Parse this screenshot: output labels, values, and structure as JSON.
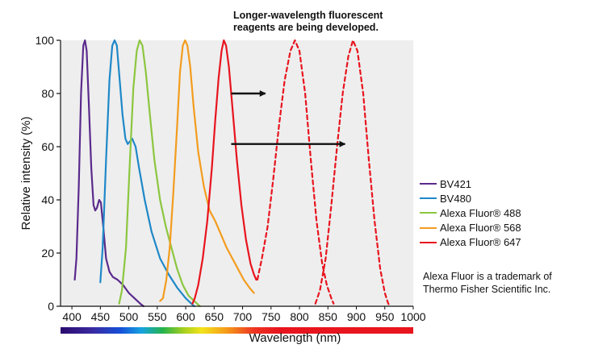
{
  "chart_data": {
    "type": "line",
    "title": "",
    "xlabel": "Wavelength (nm)",
    "ylabel": "Relative intensity (%)",
    "xlim": [
      380,
      1000
    ],
    "ylim": [
      0,
      100
    ],
    "x_ticks": [
      "400",
      "450",
      "500",
      "550",
      "600",
      "650",
      "700",
      "750",
      "800",
      "850",
      "900",
      "950",
      "1000"
    ],
    "y_ticks": [
      "0",
      "20",
      "40",
      "60",
      "80",
      "100"
    ],
    "grid": false,
    "plot_background": "#eeeeee",
    "legend_position": "right",
    "series": [
      {
        "name": "BV421",
        "color": "#5a2a8c",
        "dashed": false,
        "points": [
          [
            405,
            10
          ],
          [
            408,
            18
          ],
          [
            412,
            45
          ],
          [
            416,
            80
          ],
          [
            420,
            98
          ],
          [
            423,
            100
          ],
          [
            426,
            96
          ],
          [
            430,
            75
          ],
          [
            434,
            52
          ],
          [
            438,
            38
          ],
          [
            441,
            36
          ],
          [
            444,
            37
          ],
          [
            448,
            40
          ],
          [
            451,
            39
          ],
          [
            455,
            30
          ],
          [
            460,
            18
          ],
          [
            466,
            13
          ],
          [
            472,
            11
          ],
          [
            480,
            10
          ],
          [
            490,
            8
          ],
          [
            500,
            5
          ],
          [
            510,
            3
          ],
          [
            520,
            1
          ],
          [
            526,
            0
          ]
        ]
      },
      {
        "name": "BV480",
        "color": "#1e88c8",
        "dashed": false,
        "points": [
          [
            450,
            9
          ],
          [
            454,
            22
          ],
          [
            460,
            55
          ],
          [
            466,
            85
          ],
          [
            471,
            98
          ],
          [
            475,
            100
          ],
          [
            479,
            98
          ],
          [
            484,
            85
          ],
          [
            489,
            72
          ],
          [
            494,
            63
          ],
          [
            498,
            61
          ],
          [
            502,
            62
          ],
          [
            506,
            63
          ],
          [
            512,
            60
          ],
          [
            518,
            52
          ],
          [
            528,
            40
          ],
          [
            540,
            28
          ],
          [
            555,
            18
          ],
          [
            570,
            12
          ],
          [
            585,
            7
          ],
          [
            600,
            3
          ],
          [
            610,
            1
          ],
          [
            615,
            0
          ]
        ]
      },
      {
        "name": "Alexa Fluor® 488",
        "color": "#8cc63f",
        "dashed": false,
        "points": [
          [
            483,
            1
          ],
          [
            488,
            6
          ],
          [
            495,
            22
          ],
          [
            502,
            55
          ],
          [
            508,
            82
          ],
          [
            514,
            96
          ],
          [
            519,
            100
          ],
          [
            524,
            98
          ],
          [
            530,
            88
          ],
          [
            537,
            72
          ],
          [
            545,
            55
          ],
          [
            555,
            40
          ],
          [
            565,
            30
          ],
          [
            575,
            22
          ],
          [
            585,
            14
          ],
          [
            595,
            8
          ],
          [
            605,
            4
          ],
          [
            615,
            2
          ],
          [
            625,
            0
          ]
        ]
      },
      {
        "name": "Alexa Fluor® 568",
        "color": "#f39c1e",
        "dashed": false,
        "points": [
          [
            555,
            2
          ],
          [
            560,
            3
          ],
          [
            566,
            10
          ],
          [
            572,
            22
          ],
          [
            578,
            42
          ],
          [
            585,
            68
          ],
          [
            590,
            88
          ],
          [
            595,
            98
          ],
          [
            599,
            100
          ],
          [
            603,
            98
          ],
          [
            608,
            90
          ],
          [
            614,
            75
          ],
          [
            622,
            58
          ],
          [
            632,
            45
          ],
          [
            642,
            36
          ],
          [
            652,
            32
          ],
          [
            662,
            27
          ],
          [
            672,
            22
          ],
          [
            682,
            18
          ],
          [
            692,
            14
          ],
          [
            702,
            10
          ],
          [
            712,
            7
          ],
          [
            720,
            5
          ]
        ]
      },
      {
        "name": "Alexa Fluor® 647",
        "color": "#e8141e",
        "dashed": false,
        "points": [
          [
            612,
            1
          ],
          [
            616,
            3
          ],
          [
            622,
            8
          ],
          [
            630,
            18
          ],
          [
            638,
            32
          ],
          [
            646,
            52
          ],
          [
            652,
            70
          ],
          [
            658,
            86
          ],
          [
            663,
            96
          ],
          [
            667,
            100
          ],
          [
            671,
            98
          ],
          [
            676,
            90
          ],
          [
            682,
            75
          ],
          [
            690,
            55
          ],
          [
            698,
            38
          ],
          [
            706,
            25
          ],
          [
            714,
            16
          ],
          [
            720,
            12
          ],
          [
            724,
            10
          ]
        ]
      },
      {
        "name": "",
        "color": "#e8141e",
        "dashed": true,
        "points": [
          [
            726,
            10
          ],
          [
            734,
            18
          ],
          [
            744,
            30
          ],
          [
            754,
            48
          ],
          [
            764,
            68
          ],
          [
            774,
            85
          ],
          [
            784,
            96
          ],
          [
            792,
            100
          ],
          [
            800,
            96
          ],
          [
            810,
            80
          ],
          [
            820,
            55
          ],
          [
            830,
            32
          ],
          [
            840,
            16
          ],
          [
            848,
            8
          ],
          [
            856,
            3
          ],
          [
            860,
            1
          ]
        ]
      },
      {
        "name": "",
        "color": "#e8141e",
        "dashed": true,
        "points": [
          [
            828,
            1
          ],
          [
            836,
            6
          ],
          [
            846,
            18
          ],
          [
            856,
            38
          ],
          [
            866,
            60
          ],
          [
            876,
            80
          ],
          [
            886,
            94
          ],
          [
            894,
            100
          ],
          [
            902,
            96
          ],
          [
            912,
            80
          ],
          [
            922,
            55
          ],
          [
            932,
            32
          ],
          [
            942,
            14
          ],
          [
            950,
            5
          ],
          [
            956,
            1
          ],
          [
            960,
            0
          ]
        ]
      }
    ],
    "annotation": [
      "Longer-wavelength fluorescent",
      "reagents are being developed."
    ],
    "arrows": [
      {
        "from": [
          680,
          80
        ],
        "to": [
          740,
          80
        ]
      },
      {
        "from": [
          680,
          61
        ],
        "to": [
          880,
          61
        ]
      }
    ],
    "note": [
      "Alexa Fluor is a trademark of",
      "Thermo Fisher Scientific Inc."
    ]
  }
}
